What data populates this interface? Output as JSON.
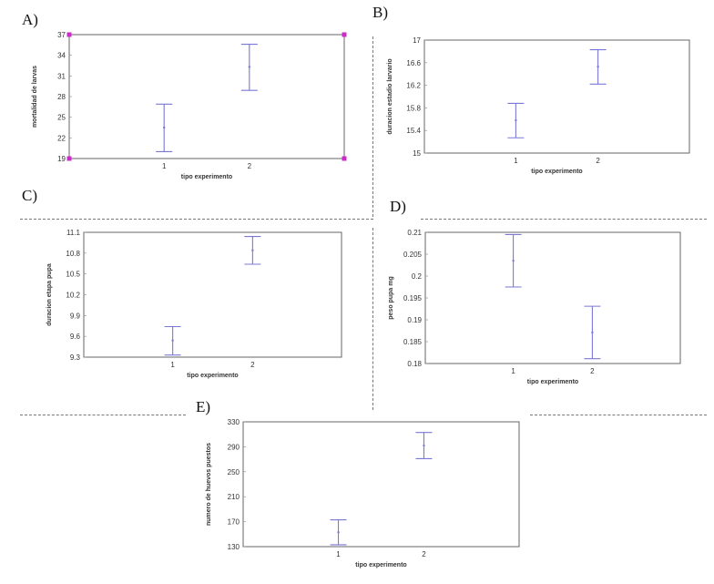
{
  "panels": [
    {
      "letter": "A)"
    },
    {
      "letter": "B)"
    },
    {
      "letter": "C)"
    },
    {
      "letter": "D)"
    },
    {
      "letter": "E)"
    }
  ],
  "colors": {
    "error_bar": "#7a78d6",
    "frame": "#666666",
    "corner_markers": "#cc2bcc"
  },
  "chart_data": [
    {
      "type": "scatter",
      "panel": "A)",
      "title": "",
      "xlabel": "tipo experimento",
      "ylabel": "mortalidad de larvas",
      "categories": [
        "1",
        "2"
      ],
      "yticks": [
        "19",
        "22",
        "25",
        "28",
        "31",
        "34",
        "37"
      ],
      "ylim": [
        19,
        37
      ],
      "series": [
        {
          "means": [
            23.5,
            32.3
          ],
          "lower": [
            20.0,
            28.9
          ],
          "upper": [
            26.9,
            35.6
          ]
        }
      ]
    },
    {
      "type": "scatter",
      "panel": "B)",
      "title": "",
      "xlabel": "tipo experimento",
      "ylabel": "duracion estadio larvario",
      "categories": [
        "1",
        "2"
      ],
      "yticks": [
        "15",
        "15.4",
        "15.8",
        "16.2",
        "16.6",
        "17"
      ],
      "ylim": [
        15,
        17
      ],
      "series": [
        {
          "means": [
            15.58,
            16.53
          ],
          "lower": [
            15.27,
            16.22
          ],
          "upper": [
            15.88,
            16.83
          ]
        }
      ]
    },
    {
      "type": "scatter",
      "panel": "C)",
      "title": "",
      "xlabel": "tipo experimento",
      "ylabel": "duracion etapa pupa",
      "categories": [
        "1",
        "2"
      ],
      "yticks": [
        "9.3",
        "9.6",
        "9.9",
        "10.2",
        "10.5",
        "10.8",
        "11.1"
      ],
      "ylim": [
        9.3,
        11.1
      ],
      "series": [
        {
          "means": [
            9.54,
            10.84
          ],
          "lower": [
            9.33,
            10.64
          ],
          "upper": [
            9.74,
            11.04
          ]
        }
      ]
    },
    {
      "type": "scatter",
      "panel": "D)",
      "title": "",
      "xlabel": "tipo experimento",
      "ylabel": "peso pupa mg",
      "categories": [
        "1",
        "2"
      ],
      "yticks": [
        "0.18",
        "0.185",
        "0.19",
        "0.195",
        "0.2",
        "0.205",
        "0.21"
      ],
      "ylim": [
        0.18,
        0.21
      ],
      "series": [
        {
          "means": [
            0.2035,
            0.1871
          ],
          "lower": [
            0.1975,
            0.1811
          ],
          "upper": [
            0.2095,
            0.1931
          ]
        }
      ]
    },
    {
      "type": "scatter",
      "panel": "E)",
      "title": "",
      "xlabel": "tipo experimento",
      "ylabel": "numero de huevos puestos",
      "categories": [
        "1",
        "2"
      ],
      "yticks": [
        "130",
        "170",
        "210",
        "250",
        "290",
        "330"
      ],
      "ylim": [
        130,
        330
      ],
      "series": [
        {
          "means": [
            153,
            292
          ],
          "lower": [
            133,
            271
          ],
          "upper": [
            173,
            313
          ]
        }
      ]
    }
  ]
}
